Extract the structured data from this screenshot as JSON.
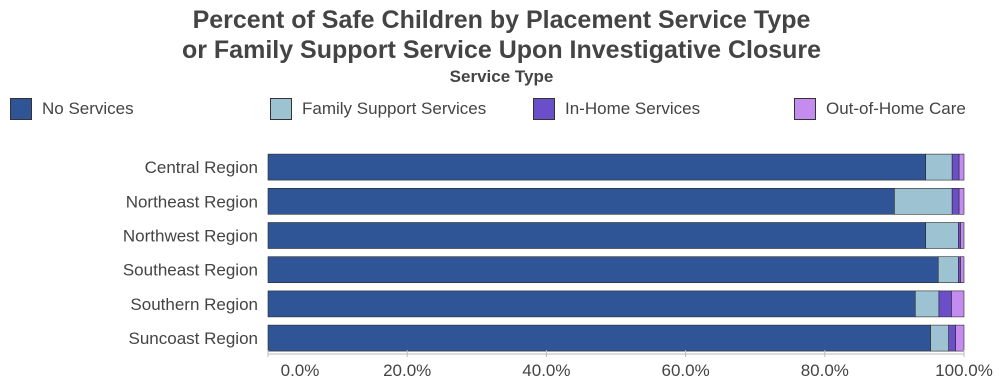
{
  "chart_data": {
    "type": "bar",
    "orientation": "horizontal",
    "stacked": true,
    "title": "Percent of Safe Children by Placement Service Type or Family Support Service Upon Investigative Closure",
    "title_lines": [
      "Percent of Safe Children by Placement Service Type",
      "or Family Support Service Upon Investigative Closure"
    ],
    "legend_title": "Service Type",
    "legend_position": "top",
    "categories": [
      "Central Region",
      "Northeast Region",
      "Northwest Region",
      "Southeast Region",
      "Southern Region",
      "Suncoast Region"
    ],
    "series": [
      {
        "name": "No Services",
        "color": "#2f5597",
        "values": [
          94.5,
          90.0,
          94.5,
          96.3,
          93.0,
          95.2
        ]
      },
      {
        "name": "Family Support Services",
        "color": "#9dc3d2",
        "values": [
          3.8,
          8.3,
          4.7,
          2.9,
          3.4,
          2.6
        ]
      },
      {
        "name": "In-Home Services",
        "color": "#6a4fc8",
        "values": [
          1.0,
          1.0,
          0.3,
          0.3,
          1.8,
          1.0
        ]
      },
      {
        "name": "Out-of-Home Care",
        "color": "#c58cf0",
        "values": [
          0.7,
          0.7,
          0.5,
          0.5,
          1.8,
          1.2
        ]
      }
    ],
    "xlim": [
      0,
      100
    ],
    "xticks": [
      "0.0%",
      "20.0%",
      "40.0%",
      "60.0%",
      "80.0%",
      "100.0%"
    ],
    "grid": false
  }
}
